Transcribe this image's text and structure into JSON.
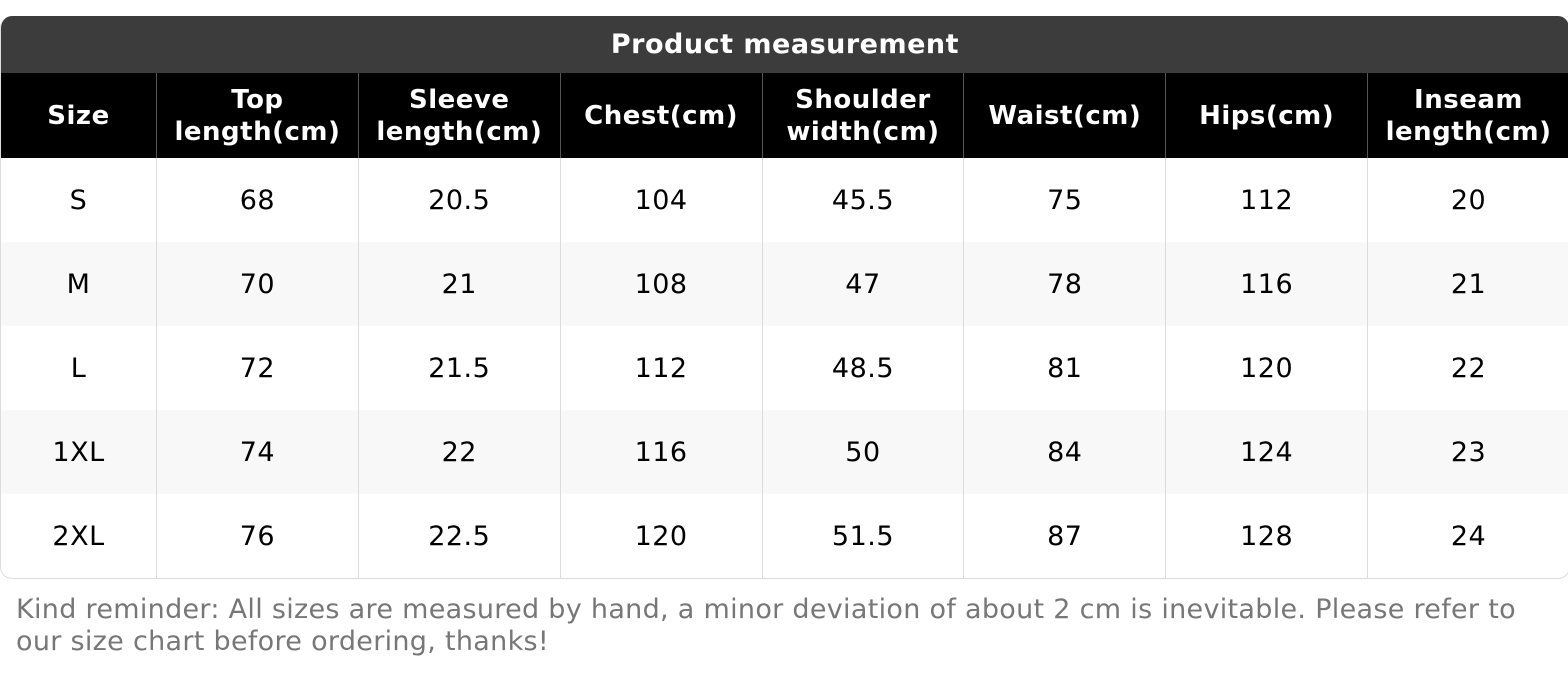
{
  "table": {
    "title": "Product measurement",
    "headers": [
      "Size",
      "Top length(cm)",
      "Sleeve length(cm)",
      "Chest(cm)",
      "Shoulder width(cm)",
      "Waist(cm)",
      "Hips(cm)",
      "Inseam length(cm)"
    ],
    "rows": [
      [
        "S",
        68,
        20.5,
        104,
        45.5,
        75,
        112,
        20
      ],
      [
        "M",
        70,
        21,
        108,
        47,
        78,
        116,
        21
      ],
      [
        "L",
        72,
        21.5,
        112,
        48.5,
        81,
        120,
        22
      ],
      [
        "1XL",
        74,
        22,
        116,
        50,
        84,
        124,
        23
      ],
      [
        "2XL",
        76,
        22.5,
        120,
        51.5,
        87,
        128,
        24
      ]
    ]
  },
  "note": "Kind reminder: All sizes are measured by hand, a minor deviation of about 2 cm is inevitable. Please refer to our size chart before ordering, thanks!"
}
